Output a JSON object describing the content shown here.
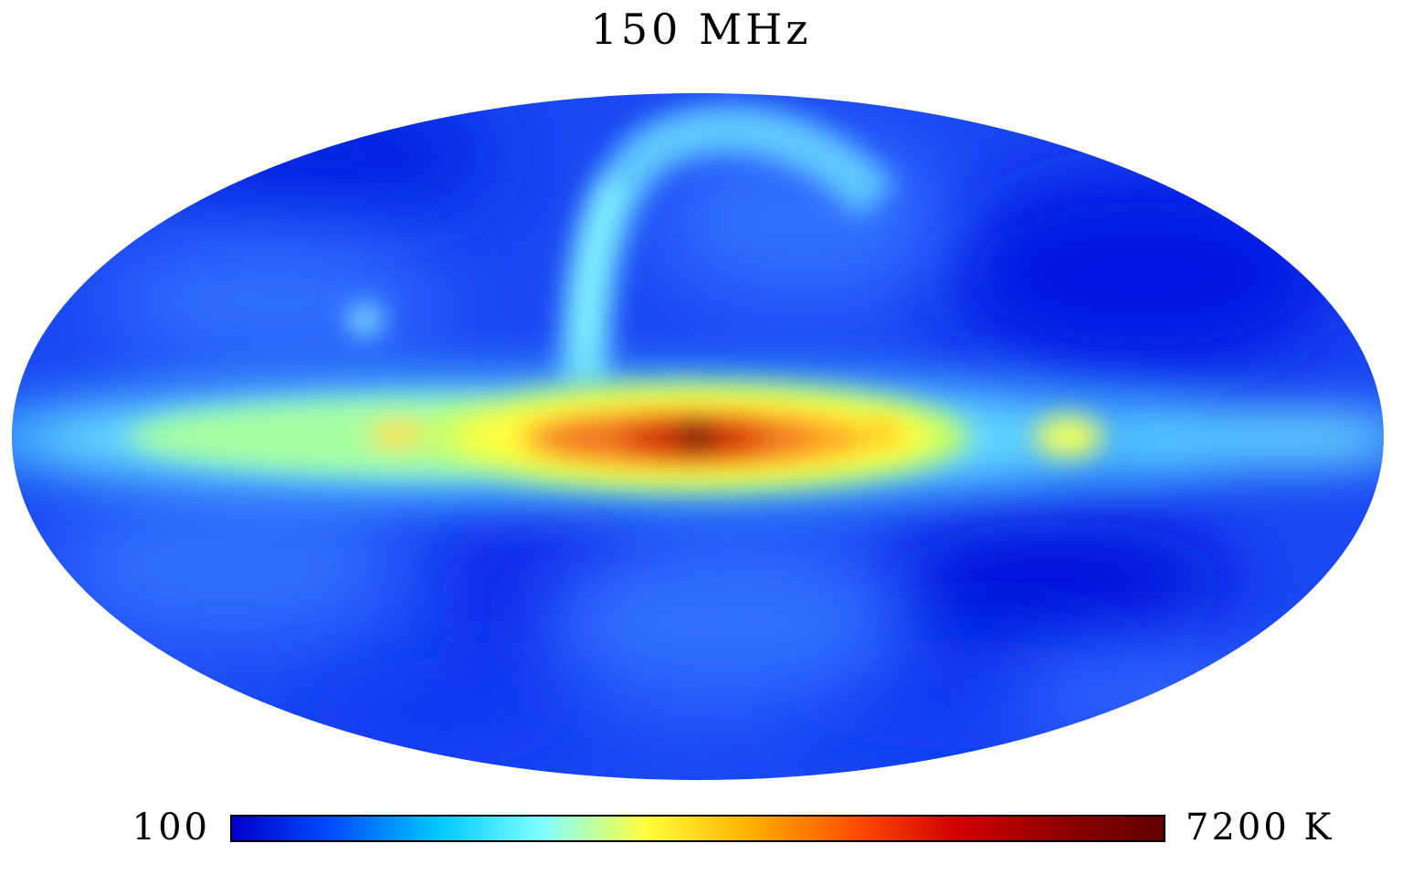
{
  "title": "150 MHz",
  "projection": "mollweide",
  "coordinate_system": "galactic",
  "colorbar": {
    "min_label": "100",
    "max_label": "7200 K",
    "colormap": "jet",
    "stops": [
      "#0000c8",
      "#0050ff",
      "#00c8ff",
      "#80ffff",
      "#ffff40",
      "#ffb000",
      "#ff5000",
      "#d00000",
      "#900000",
      "#600000"
    ]
  },
  "colors": {
    "background": "#ffffff",
    "sky_base": "#1040f0",
    "galactic_plane": "#60e0ff",
    "hot_core": "#b00000"
  }
}
